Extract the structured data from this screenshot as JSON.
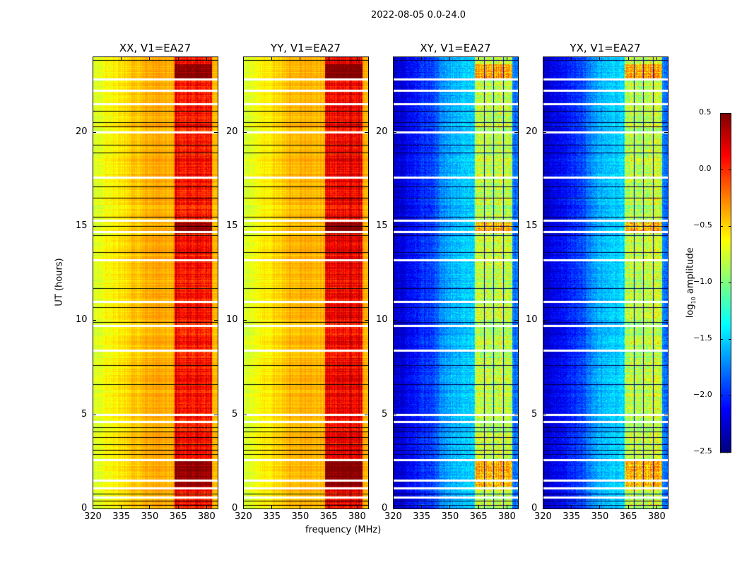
{
  "figure": {
    "suptitle": "2022-08-05 0.0-24.0",
    "xlabel": "frequency (MHz)",
    "ylabel": "UT (hours)",
    "colorbar_label": "log₁₀ amplitude"
  },
  "chart_data": {
    "type": "heatmap",
    "title": "2022-08-05 0.0-24.0",
    "xlabel": "frequency (MHz)",
    "ylabel": "UT (hours)",
    "xlim": [
      320,
      386
    ],
    "ylim": [
      0,
      24
    ],
    "xticks": [
      "320",
      "335",
      "350",
      "365",
      "380"
    ],
    "yticks": [
      "0",
      "5",
      "10",
      "15",
      "20"
    ],
    "colorbar": {
      "label": "log10 amplitude",
      "range": [
        -2.5,
        0.5
      ],
      "ticks": [
        "0.5",
        "0.0",
        "−0.5",
        "−1.0",
        "−1.5",
        "−2.0",
        "−2.5"
      ],
      "colormap": "jet"
    },
    "panels": [
      {
        "title": "XX, V1=EA27",
        "low_edge_level": -0.75,
        "mid_level": -0.4,
        "band_level": 0.1,
        "rfi_band_mhz": [
          363,
          383
        ]
      },
      {
        "title": "YY, V1=EA27",
        "low_edge_level": -0.75,
        "mid_level": -0.4,
        "band_level": 0.15,
        "rfi_band_mhz": [
          363,
          383
        ]
      },
      {
        "title": "XY, V1=EA27",
        "low_edge_level": -2.3,
        "mid_level": -1.8,
        "band_level": -0.8,
        "rfi_band_mhz": [
          363,
          383
        ]
      },
      {
        "title": "YX, V1=EA27",
        "low_edge_level": -2.3,
        "mid_level": -1.8,
        "band_level": -0.8,
        "rfi_band_mhz": [
          363,
          383
        ]
      }
    ],
    "flagged_rows_ut": [
      0.6,
      1.1,
      1.5,
      2.6,
      4.6,
      5.0,
      8.4,
      9.7,
      11.0,
      13.2,
      14.7,
      15.3,
      17.6,
      20.0,
      21.5,
      22.2,
      22.8
    ],
    "dark_rows_ut": [
      0.2,
      0.4,
      0.8,
      2.9,
      3.1,
      3.4,
      3.8,
      4.1,
      4.3,
      6.6,
      7.6,
      9.9,
      10.7,
      11.7,
      13.6,
      14.5,
      15.0,
      15.5,
      16.5,
      17.1,
      18.9,
      19.3,
      20.3,
      20.5,
      21.1,
      23.8
    ]
  }
}
